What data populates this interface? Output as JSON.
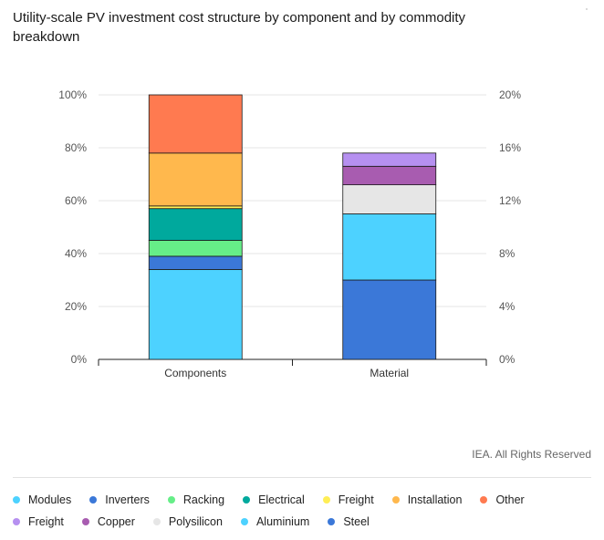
{
  "title": "Utility-scale PV investment cost structure by component and by commodity breakdown",
  "source": "IEA. All Rights Reserved",
  "chart_data": {
    "type": "bar",
    "stacked": true,
    "categories": [
      "Components",
      "Material"
    ],
    "left_axis": {
      "ticks": [
        "0%",
        "20%",
        "40%",
        "60%",
        "80%",
        "100%"
      ],
      "range": [
        0,
        100
      ]
    },
    "right_axis": {
      "ticks": [
        "0%",
        "4%",
        "8%",
        "12%",
        "16%",
        "20%"
      ],
      "range": [
        0,
        20
      ]
    },
    "grid": true,
    "series": [
      {
        "name": "Modules",
        "category": "Components",
        "value": 34,
        "color": "#4dd2ff"
      },
      {
        "name": "Inverters",
        "category": "Components",
        "value": 5,
        "color": "#3b78d8"
      },
      {
        "name": "Racking",
        "category": "Components",
        "value": 6,
        "color": "#66ee88"
      },
      {
        "name": "Electrical",
        "category": "Components",
        "value": 12,
        "color": "#00a99d"
      },
      {
        "name": "Freight",
        "category": "Components",
        "value": 1,
        "color": "#ffee55"
      },
      {
        "name": "Installation",
        "category": "Components",
        "value": 20,
        "color": "#ffb84d"
      },
      {
        "name": "Other",
        "category": "Components",
        "value": 22,
        "color": "#ff7a50"
      },
      {
        "name": "Steel",
        "category": "Material",
        "value": 6.0,
        "color": "#3b78d8"
      },
      {
        "name": "Aluminium",
        "category": "Material",
        "value": 5.0,
        "color": "#4dd2ff"
      },
      {
        "name": "Polysilicon",
        "category": "Material",
        "value": 2.2,
        "color": "#e6e6e6"
      },
      {
        "name": "Copper",
        "category": "Material",
        "value": 1.4,
        "color": "#a85cb0"
      },
      {
        "name": "Freight",
        "category": "Material",
        "value": 1.0,
        "color": "#b690f0"
      }
    ],
    "legend_placement": "bottom"
  },
  "legend": {
    "row1": [
      {
        "label": "Modules",
        "color": "#4dd2ff"
      },
      {
        "label": "Inverters",
        "color": "#3b78d8"
      },
      {
        "label": "Racking",
        "color": "#66ee88"
      },
      {
        "label": "Electrical",
        "color": "#00a99d"
      },
      {
        "label": "Freight",
        "color": "#ffee55"
      },
      {
        "label": "Installation",
        "color": "#ffb84d"
      },
      {
        "label": "Other",
        "color": "#ff7a50"
      }
    ],
    "row2": [
      {
        "label": "Freight",
        "color": "#b690f0"
      },
      {
        "label": "Copper",
        "color": "#a85cb0"
      },
      {
        "label": "Polysilicon",
        "color": "#e6e6e6"
      },
      {
        "label": "Aluminium",
        "color": "#4dd2ff"
      },
      {
        "label": "Steel",
        "color": "#3b78d8"
      }
    ]
  }
}
